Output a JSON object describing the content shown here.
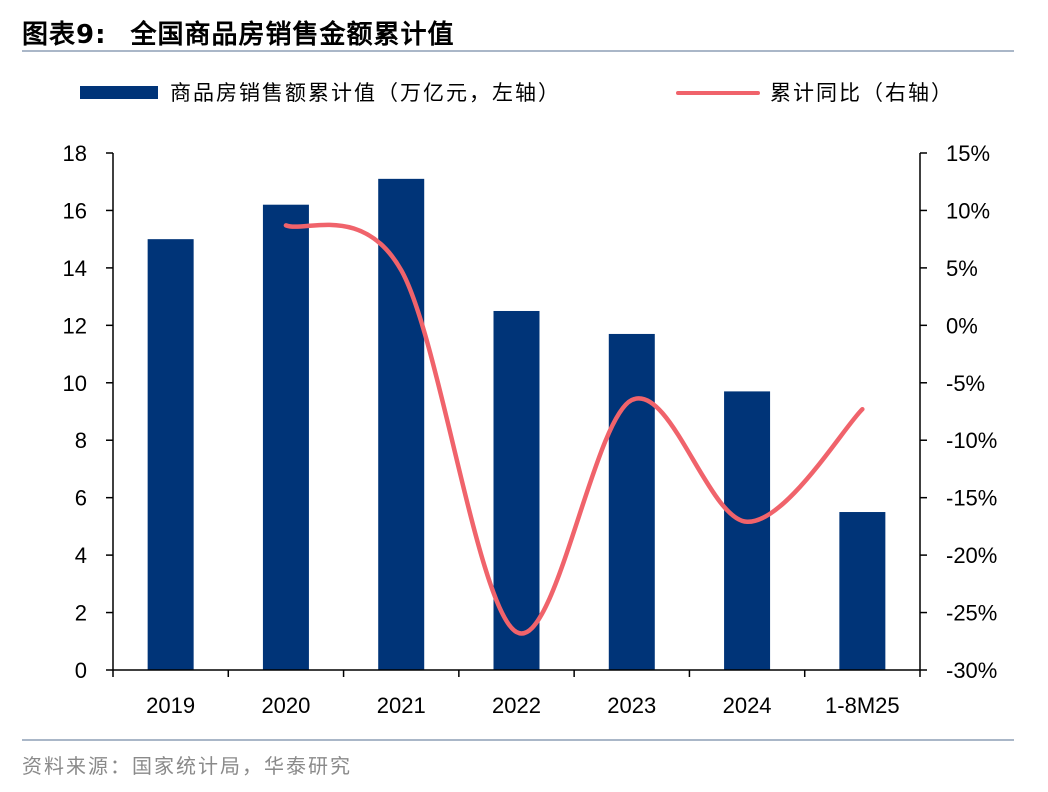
{
  "header": {
    "figure_number": "图表9:",
    "title": "全国商品房销售金额累计值"
  },
  "source": "资料来源：国家统计局，华泰研究",
  "chart_data": {
    "type": "bar+line",
    "categories": [
      "2019",
      "2020",
      "2021",
      "2022",
      "2023",
      "2024",
      "1-8M25"
    ],
    "series": [
      {
        "name": "商品房销售额累计值（万亿元，左轴）",
        "type": "bar",
        "axis": "left",
        "color": "#003478",
        "values": [
          15.0,
          16.2,
          17.1,
          12.5,
          11.7,
          9.7,
          5.5
        ]
      },
      {
        "name": "累计同比（右轴）",
        "type": "line",
        "axis": "right",
        "color": "#f0636b",
        "values": [
          null,
          8.7,
          4.8,
          -26.7,
          -6.5,
          -17.1,
          -7.3
        ]
      }
    ],
    "left_axis": {
      "ylim": [
        0,
        18
      ],
      "ticks": [
        "0",
        "2",
        "4",
        "6",
        "8",
        "10",
        "12",
        "14",
        "16",
        "18"
      ]
    },
    "right_axis": {
      "ylim": [
        -30,
        15
      ],
      "ticks": [
        "-30%",
        "-25%",
        "-20%",
        "-15%",
        "-10%",
        "-5%",
        "0%",
        "5%",
        "10%",
        "15%"
      ]
    },
    "grid": false,
    "legend_position": "top"
  }
}
